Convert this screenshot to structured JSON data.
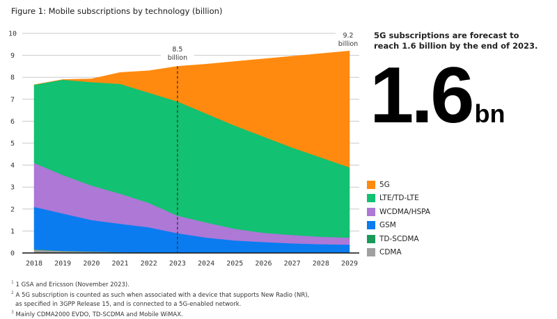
{
  "figure": {
    "title": "Figure 1: Mobile subscriptions by technology (billion)"
  },
  "callout": {
    "text": "5G subscriptions are forecast to reach 1.6 billion by the end of 2023.",
    "big_number": "1.6",
    "big_unit": "bn"
  },
  "footnotes": [
    {
      "marker": "1",
      "text": "1 GSA and Ericsson (November 2023)."
    },
    {
      "marker": "2",
      "text": "A 5G subscription is counted as such when associated with a device that supports New Radio (NR),"
    },
    {
      "marker": "",
      "text": "as specified in 3GPP Release 15, and is connected to a 5G-enabled network."
    },
    {
      "marker": "3",
      "text": "Mainly CDMA2000 EVDO, TD-SCDMA and Mobile WiMAX."
    }
  ],
  "chart_data": {
    "type": "area",
    "stacked": true,
    "title": "Figure 1: Mobile subscriptions by technology (billion)",
    "xlabel": "",
    "ylabel": "",
    "ylim": [
      0,
      10
    ],
    "yticks": [
      0,
      1,
      2,
      3,
      4,
      5,
      6,
      7,
      8,
      9,
      10
    ],
    "x": [
      "2018",
      "2019",
      "2020",
      "2021",
      "2022",
      "2023",
      "2024",
      "2025",
      "2026",
      "2027",
      "2028",
      "2029"
    ],
    "grid": true,
    "legend_position": "right",
    "series": [
      {
        "name": "CDMA",
        "color": "#a0a0a0",
        "values": [
          0.15,
          0.09,
          0.06,
          0.04,
          0.03,
          0.02,
          0.01,
          0.01,
          0.01,
          0.0,
          0.0,
          0.0
        ]
      },
      {
        "name": "TD-SCDMA",
        "color": "#1a9a5a",
        "values": [
          0.02,
          0.01,
          0.01,
          0.0,
          0.0,
          0.0,
          0.0,
          0.0,
          0.0,
          0.0,
          0.0,
          0.0
        ]
      },
      {
        "name": "GSM",
        "color": "#0a7cf0",
        "values": [
          1.93,
          1.7,
          1.43,
          1.29,
          1.14,
          0.88,
          0.69,
          0.56,
          0.49,
          0.44,
          0.4,
          0.38
        ]
      },
      {
        "name": "WCDMA/HSPA",
        "color": "#ad78d6",
        "values": [
          2.0,
          1.75,
          1.57,
          1.37,
          1.11,
          0.8,
          0.69,
          0.53,
          0.42,
          0.38,
          0.34,
          0.32
        ]
      },
      {
        "name": "LTE/TD-LTE",
        "color": "#12c171",
        "values": [
          3.56,
          4.34,
          4.71,
          5.0,
          5.02,
          5.2,
          4.96,
          4.7,
          4.38,
          3.98,
          3.61,
          3.2
        ]
      },
      {
        "name": "5G",
        "color": "#ff8a0f",
        "values": [
          0.0,
          0.01,
          0.15,
          0.52,
          1.0,
          1.6,
          2.25,
          2.92,
          3.54,
          4.16,
          4.73,
          5.3
        ]
      }
    ],
    "legend_order": [
      "5G",
      "LTE/TD-LTE",
      "WCDMA/HSPA",
      "GSM",
      "TD-SCDMA",
      "CDMA"
    ],
    "annotations": [
      {
        "x": "2023",
        "value": "8.5",
        "unit": "billion",
        "dashed_line": true
      },
      {
        "x": "2029",
        "value": "9.2",
        "unit": "billion",
        "dashed_line": false
      }
    ]
  }
}
